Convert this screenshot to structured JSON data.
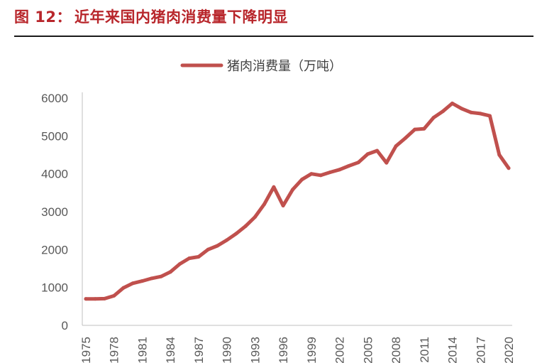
{
  "figure": {
    "label": "图 12：",
    "title": "近年来国内猪肉消费量下降明显"
  },
  "chart_data": {
    "type": "line",
    "title": "",
    "xlabel": "",
    "ylabel": "",
    "ylim": [
      0,
      6000
    ],
    "yticks": [
      0,
      1000,
      2000,
      3000,
      4000,
      5000,
      6000
    ],
    "xtick_labels": [
      "1975",
      "1978",
      "1981",
      "1984",
      "1987",
      "1990",
      "1993",
      "1996",
      "1999",
      "2002",
      "2005",
      "2008",
      "2011",
      "2014",
      "2017",
      "2020"
    ],
    "legend_position": "top-center",
    "grid": false,
    "color": "#c0504d",
    "x": [
      1975,
      1976,
      1977,
      1978,
      1979,
      1980,
      1981,
      1982,
      1983,
      1984,
      1985,
      1986,
      1987,
      1988,
      1989,
      1990,
      1991,
      1992,
      1993,
      1994,
      1995,
      1996,
      1997,
      1998,
      1999,
      2000,
      2001,
      2002,
      2003,
      2004,
      2005,
      2006,
      2007,
      2008,
      2009,
      2010,
      2011,
      2012,
      2013,
      2014,
      2015,
      2016,
      2017,
      2018,
      2019,
      2020
    ],
    "series": [
      {
        "name": "猪肉消费量（万吨）",
        "values": [
          700,
          700,
          705,
          780,
          990,
          1110,
          1170,
          1240,
          1290,
          1410,
          1620,
          1770,
          1810,
          2000,
          2100,
          2250,
          2420,
          2620,
          2860,
          3200,
          3650,
          3160,
          3580,
          3850,
          4000,
          3960,
          4040,
          4110,
          4210,
          4300,
          4520,
          4610,
          4290,
          4730,
          4940,
          5170,
          5190,
          5480,
          5650,
          5860,
          5720,
          5620,
          5590,
          5530,
          4500,
          4150
        ]
      }
    ]
  }
}
